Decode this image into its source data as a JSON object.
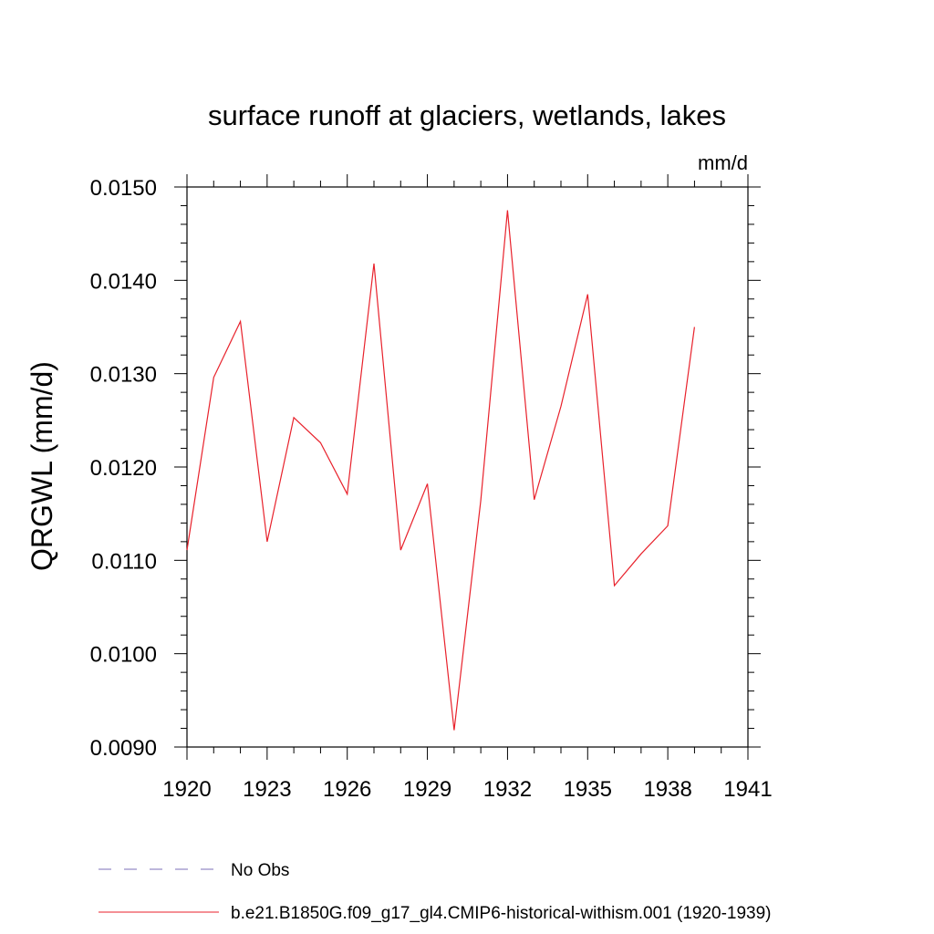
{
  "chart_data": {
    "type": "line",
    "title": "surface runoff at glaciers, wetlands, lakes",
    "units": "mm/d",
    "ylabel": "QRGWL  (mm/d)",
    "xlabel": "",
    "xlim": [
      1920,
      1941
    ],
    "ylim": [
      0.009,
      0.015
    ],
    "x_ticks": [
      1920,
      1923,
      1926,
      1929,
      1932,
      1935,
      1938,
      1941
    ],
    "x_tick_labels": [
      "1920",
      "1923",
      "1926",
      "1929",
      "1932",
      "1935",
      "1938",
      "1941"
    ],
    "y_ticks": [
      0.009,
      0.01,
      0.011,
      0.012,
      0.013,
      0.014,
      0.015
    ],
    "y_tick_labels": [
      "0.0090",
      "0.0100",
      "0.0110",
      "0.0120",
      "0.0130",
      "0.0140",
      "0.0150"
    ],
    "grid": false,
    "legend_position": "bottom",
    "series": [
      {
        "name": "b.e21.B1850G.f09_g17_gl4.CMIP6-historical-withism.001 (1920-1939)",
        "color": "#e8212b",
        "style": "solid",
        "x": [
          1920,
          1921,
          1922,
          1923,
          1924,
          1925,
          1926,
          1927,
          1928,
          1929,
          1930,
          1931,
          1932,
          1933,
          1934,
          1935,
          1936,
          1937,
          1938,
          1939
        ],
        "y": [
          0.01111,
          0.01296,
          0.01356,
          0.0112,
          0.01253,
          0.01226,
          0.01171,
          0.01418,
          0.01111,
          0.01182,
          0.00918,
          0.01164,
          0.01475,
          0.01165,
          0.01265,
          0.01385,
          0.01073,
          0.01107,
          0.01137,
          0.0135
        ]
      }
    ],
    "legend_entries": [
      {
        "label": "No Obs",
        "color": "#7b6fb8",
        "style": "dashed"
      },
      {
        "label": "b.e21.B1850G.f09_g17_gl4.CMIP6-historical-withism.001 (1920-1939)",
        "color": "#e8212b",
        "style": "solid"
      }
    ]
  }
}
